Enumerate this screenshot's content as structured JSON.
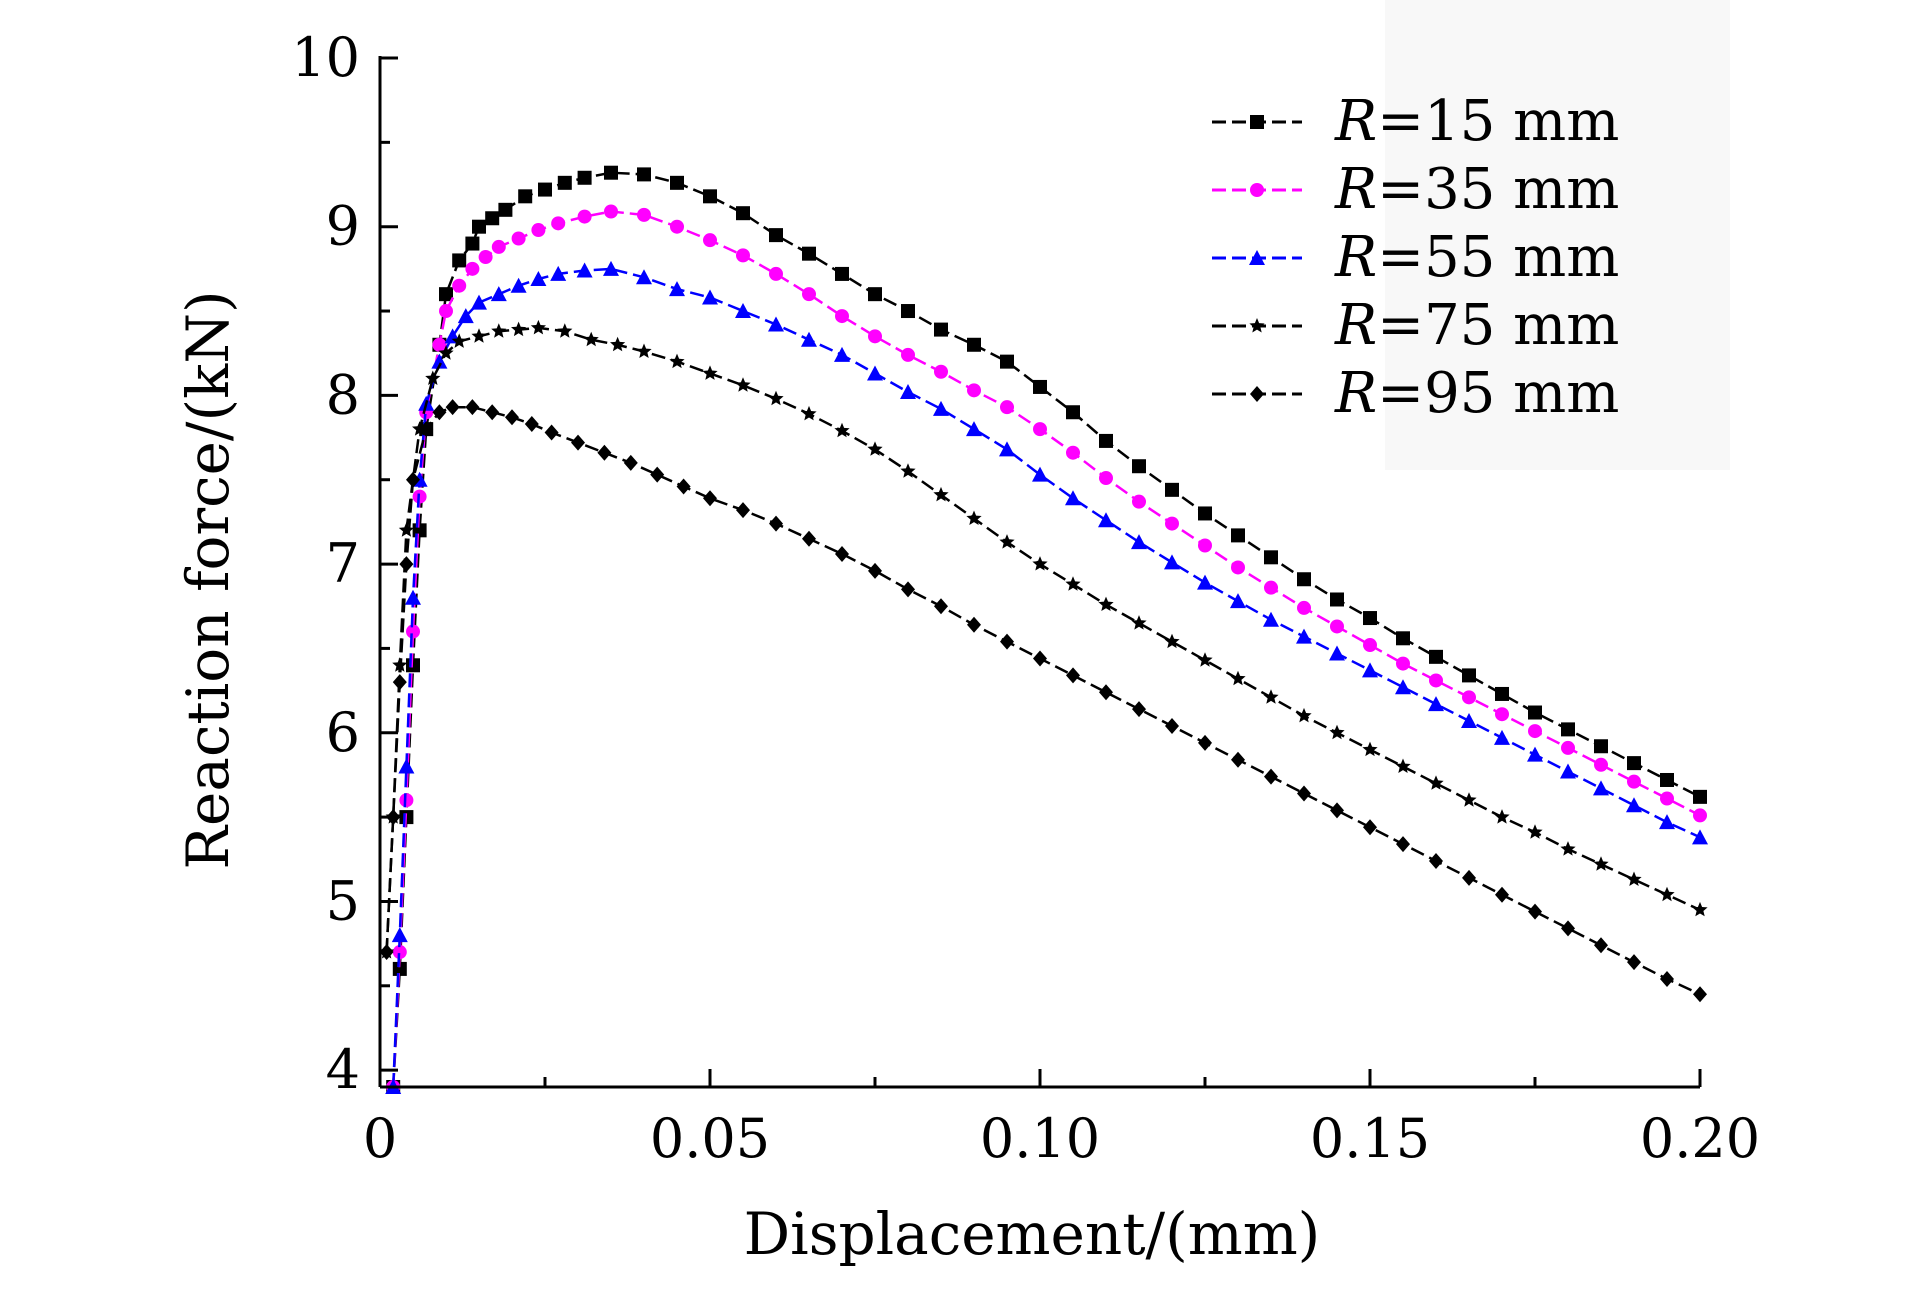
{
  "chart_data": {
    "type": "line",
    "xlabel": "Displacement/(mm)",
    "ylabel": "Reaction force/(kN)",
    "xlim": [
      0,
      0.2
    ],
    "ylim": [
      3.9,
      10
    ],
    "xticks": [
      {
        "value": 0,
        "label": "0"
      },
      {
        "value": 0.05,
        "label": "0.05"
      },
      {
        "value": 0.1,
        "label": "0.10"
      },
      {
        "value": 0.15,
        "label": "0.15"
      },
      {
        "value": 0.2,
        "label": "0.20"
      }
    ],
    "yticks": [
      {
        "value": 4,
        "label": "4"
      },
      {
        "value": 5,
        "label": "5"
      },
      {
        "value": 6,
        "label": "6"
      },
      {
        "value": 7,
        "label": "7"
      },
      {
        "value": 8,
        "label": "8"
      },
      {
        "value": 9,
        "label": "9"
      },
      {
        "value": 10,
        "label": "10"
      }
    ],
    "grid": false,
    "legend_position": "top-right",
    "series": [
      {
        "name_prefix": "R",
        "name_suffix": "=15 mm",
        "color": "#000000",
        "marker": "square",
        "points": [
          [
            0.002,
            3.9
          ],
          [
            0.003,
            4.6
          ],
          [
            0.004,
            5.5
          ],
          [
            0.005,
            6.4
          ],
          [
            0.006,
            7.2
          ],
          [
            0.007,
            7.8
          ],
          [
            0.009,
            8.3
          ],
          [
            0.01,
            8.6
          ],
          [
            0.012,
            8.8
          ],
          [
            0.014,
            8.9
          ],
          [
            0.015,
            9.0
          ],
          [
            0.017,
            9.05
          ],
          [
            0.019,
            9.1
          ],
          [
            0.022,
            9.18
          ],
          [
            0.025,
            9.22
          ],
          [
            0.028,
            9.26
          ],
          [
            0.031,
            9.29
          ],
          [
            0.035,
            9.32
          ],
          [
            0.04,
            9.31
          ],
          [
            0.045,
            9.26
          ],
          [
            0.05,
            9.18
          ],
          [
            0.055,
            9.08
          ],
          [
            0.06,
            8.95
          ],
          [
            0.065,
            8.84
          ],
          [
            0.07,
            8.72
          ],
          [
            0.075,
            8.6
          ],
          [
            0.08,
            8.5
          ],
          [
            0.085,
            8.39
          ],
          [
            0.09,
            8.3
          ],
          [
            0.095,
            8.2
          ],
          [
            0.1,
            8.05
          ],
          [
            0.105,
            7.9
          ],
          [
            0.11,
            7.73
          ],
          [
            0.115,
            7.58
          ],
          [
            0.12,
            7.44
          ],
          [
            0.125,
            7.3
          ],
          [
            0.13,
            7.17
          ],
          [
            0.135,
            7.04
          ],
          [
            0.14,
            6.91
          ],
          [
            0.145,
            6.79
          ],
          [
            0.15,
            6.68
          ],
          [
            0.155,
            6.56
          ],
          [
            0.16,
            6.45
          ],
          [
            0.165,
            6.34
          ],
          [
            0.17,
            6.23
          ],
          [
            0.175,
            6.12
          ],
          [
            0.18,
            6.02
          ],
          [
            0.185,
            5.92
          ],
          [
            0.19,
            5.82
          ],
          [
            0.195,
            5.72
          ],
          [
            0.2,
            5.62
          ]
        ]
      },
      {
        "name_prefix": "R",
        "name_suffix": "=35 mm",
        "color": "#ff00ff",
        "marker": "circle",
        "points": [
          [
            0.002,
            3.9
          ],
          [
            0.003,
            4.7
          ],
          [
            0.004,
            5.6
          ],
          [
            0.005,
            6.6
          ],
          [
            0.006,
            7.4
          ],
          [
            0.007,
            7.9
          ],
          [
            0.009,
            8.3
          ],
          [
            0.01,
            8.5
          ],
          [
            0.012,
            8.65
          ],
          [
            0.014,
            8.75
          ],
          [
            0.016,
            8.82
          ],
          [
            0.018,
            8.88
          ],
          [
            0.021,
            8.93
          ],
          [
            0.024,
            8.98
          ],
          [
            0.027,
            9.02
          ],
          [
            0.031,
            9.06
          ],
          [
            0.035,
            9.09
          ],
          [
            0.04,
            9.07
          ],
          [
            0.045,
            9.0
          ],
          [
            0.05,
            8.92
          ],
          [
            0.055,
            8.83
          ],
          [
            0.06,
            8.72
          ],
          [
            0.065,
            8.6
          ],
          [
            0.07,
            8.47
          ],
          [
            0.075,
            8.35
          ],
          [
            0.08,
            8.24
          ],
          [
            0.085,
            8.14
          ],
          [
            0.09,
            8.03
          ],
          [
            0.095,
            7.93
          ],
          [
            0.1,
            7.8
          ],
          [
            0.105,
            7.66
          ],
          [
            0.11,
            7.51
          ],
          [
            0.115,
            7.37
          ],
          [
            0.12,
            7.24
          ],
          [
            0.125,
            7.11
          ],
          [
            0.13,
            6.98
          ],
          [
            0.135,
            6.86
          ],
          [
            0.14,
            6.74
          ],
          [
            0.145,
            6.63
          ],
          [
            0.15,
            6.52
          ],
          [
            0.155,
            6.41
          ],
          [
            0.16,
            6.31
          ],
          [
            0.165,
            6.21
          ],
          [
            0.17,
            6.11
          ],
          [
            0.175,
            6.01
          ],
          [
            0.18,
            5.91
          ],
          [
            0.185,
            5.81
          ],
          [
            0.19,
            5.71
          ],
          [
            0.195,
            5.61
          ],
          [
            0.2,
            5.51
          ]
        ]
      },
      {
        "name_prefix": "R",
        "name_suffix": "=55 mm",
        "color": "#0000ff",
        "marker": "triangle",
        "points": [
          [
            0.002,
            3.9
          ],
          [
            0.003,
            4.8
          ],
          [
            0.004,
            5.8
          ],
          [
            0.005,
            6.8
          ],
          [
            0.006,
            7.5
          ],
          [
            0.007,
            7.95
          ],
          [
            0.009,
            8.2
          ],
          [
            0.011,
            8.35
          ],
          [
            0.013,
            8.47
          ],
          [
            0.015,
            8.55
          ],
          [
            0.018,
            8.6
          ],
          [
            0.021,
            8.65
          ],
          [
            0.024,
            8.69
          ],
          [
            0.027,
            8.72
          ],
          [
            0.031,
            8.74
          ],
          [
            0.035,
            8.75
          ],
          [
            0.04,
            8.7
          ],
          [
            0.045,
            8.63
          ],
          [
            0.05,
            8.58
          ],
          [
            0.055,
            8.5
          ],
          [
            0.06,
            8.42
          ],
          [
            0.065,
            8.33
          ],
          [
            0.07,
            8.24
          ],
          [
            0.075,
            8.13
          ],
          [
            0.08,
            8.02
          ],
          [
            0.085,
            7.92
          ],
          [
            0.09,
            7.8
          ],
          [
            0.095,
            7.68
          ],
          [
            0.1,
            7.53
          ],
          [
            0.105,
            7.39
          ],
          [
            0.11,
            7.26
          ],
          [
            0.115,
            7.13
          ],
          [
            0.12,
            7.01
          ],
          [
            0.125,
            6.89
          ],
          [
            0.13,
            6.78
          ],
          [
            0.135,
            6.67
          ],
          [
            0.14,
            6.57
          ],
          [
            0.145,
            6.47
          ],
          [
            0.15,
            6.37
          ],
          [
            0.155,
            6.27
          ],
          [
            0.16,
            6.17
          ],
          [
            0.165,
            6.07
          ],
          [
            0.17,
            5.97
          ],
          [
            0.175,
            5.87
          ],
          [
            0.18,
            5.77
          ],
          [
            0.185,
            5.67
          ],
          [
            0.19,
            5.57
          ],
          [
            0.195,
            5.47
          ],
          [
            0.2,
            5.38
          ]
        ]
      },
      {
        "name_prefix": "R",
        "name_suffix": "=75 mm",
        "color": "#000000",
        "marker": "star",
        "points": [
          [
            0.001,
            4.7
          ],
          [
            0.002,
            5.5
          ],
          [
            0.003,
            6.4
          ],
          [
            0.004,
            7.2
          ],
          [
            0.006,
            7.8
          ],
          [
            0.008,
            8.1
          ],
          [
            0.01,
            8.25
          ],
          [
            0.012,
            8.32
          ],
          [
            0.015,
            8.35
          ],
          [
            0.018,
            8.38
          ],
          [
            0.021,
            8.39
          ],
          [
            0.024,
            8.4
          ],
          [
            0.028,
            8.38
          ],
          [
            0.032,
            8.33
          ],
          [
            0.036,
            8.3
          ],
          [
            0.04,
            8.26
          ],
          [
            0.045,
            8.2
          ],
          [
            0.05,
            8.13
          ],
          [
            0.055,
            8.06
          ],
          [
            0.06,
            7.98
          ],
          [
            0.065,
            7.89
          ],
          [
            0.07,
            7.79
          ],
          [
            0.075,
            7.68
          ],
          [
            0.08,
            7.55
          ],
          [
            0.085,
            7.41
          ],
          [
            0.09,
            7.27
          ],
          [
            0.095,
            7.13
          ],
          [
            0.1,
            7.0
          ],
          [
            0.105,
            6.88
          ],
          [
            0.11,
            6.76
          ],
          [
            0.115,
            6.65
          ],
          [
            0.12,
            6.54
          ],
          [
            0.125,
            6.43
          ],
          [
            0.13,
            6.32
          ],
          [
            0.135,
            6.21
          ],
          [
            0.14,
            6.1
          ],
          [
            0.145,
            6.0
          ],
          [
            0.15,
            5.9
          ],
          [
            0.155,
            5.8
          ],
          [
            0.16,
            5.7
          ],
          [
            0.165,
            5.6
          ],
          [
            0.17,
            5.5
          ],
          [
            0.175,
            5.41
          ],
          [
            0.18,
            5.31
          ],
          [
            0.185,
            5.22
          ],
          [
            0.19,
            5.13
          ],
          [
            0.195,
            5.04
          ],
          [
            0.2,
            4.95
          ]
        ]
      },
      {
        "name_prefix": "R",
        "name_suffix": "=95 mm",
        "color": "#000000",
        "marker": "diamond",
        "points": [
          [
            0.001,
            4.7
          ],
          [
            0.002,
            5.5
          ],
          [
            0.003,
            6.3
          ],
          [
            0.004,
            7.0
          ],
          [
            0.005,
            7.5
          ],
          [
            0.007,
            7.8
          ],
          [
            0.009,
            7.9
          ],
          [
            0.011,
            7.93
          ],
          [
            0.014,
            7.93
          ],
          [
            0.017,
            7.9
          ],
          [
            0.02,
            7.87
          ],
          [
            0.023,
            7.83
          ],
          [
            0.026,
            7.78
          ],
          [
            0.03,
            7.72
          ],
          [
            0.034,
            7.66
          ],
          [
            0.038,
            7.6
          ],
          [
            0.042,
            7.53
          ],
          [
            0.046,
            7.46
          ],
          [
            0.05,
            7.39
          ],
          [
            0.055,
            7.32
          ],
          [
            0.06,
            7.24
          ],
          [
            0.065,
            7.15
          ],
          [
            0.07,
            7.06
          ],
          [
            0.075,
            6.96
          ],
          [
            0.08,
            6.85
          ],
          [
            0.085,
            6.75
          ],
          [
            0.09,
            6.64
          ],
          [
            0.095,
            6.54
          ],
          [
            0.1,
            6.44
          ],
          [
            0.105,
            6.34
          ],
          [
            0.11,
            6.24
          ],
          [
            0.115,
            6.14
          ],
          [
            0.12,
            6.04
          ],
          [
            0.125,
            5.94
          ],
          [
            0.13,
            5.84
          ],
          [
            0.135,
            5.74
          ],
          [
            0.14,
            5.64
          ],
          [
            0.145,
            5.54
          ],
          [
            0.15,
            5.44
          ],
          [
            0.155,
            5.34
          ],
          [
            0.16,
            5.24
          ],
          [
            0.165,
            5.14
          ],
          [
            0.17,
            5.04
          ],
          [
            0.175,
            4.94
          ],
          [
            0.18,
            4.84
          ],
          [
            0.185,
            4.74
          ],
          [
            0.19,
            4.64
          ],
          [
            0.195,
            4.54
          ],
          [
            0.2,
            4.45
          ]
        ]
      }
    ]
  }
}
